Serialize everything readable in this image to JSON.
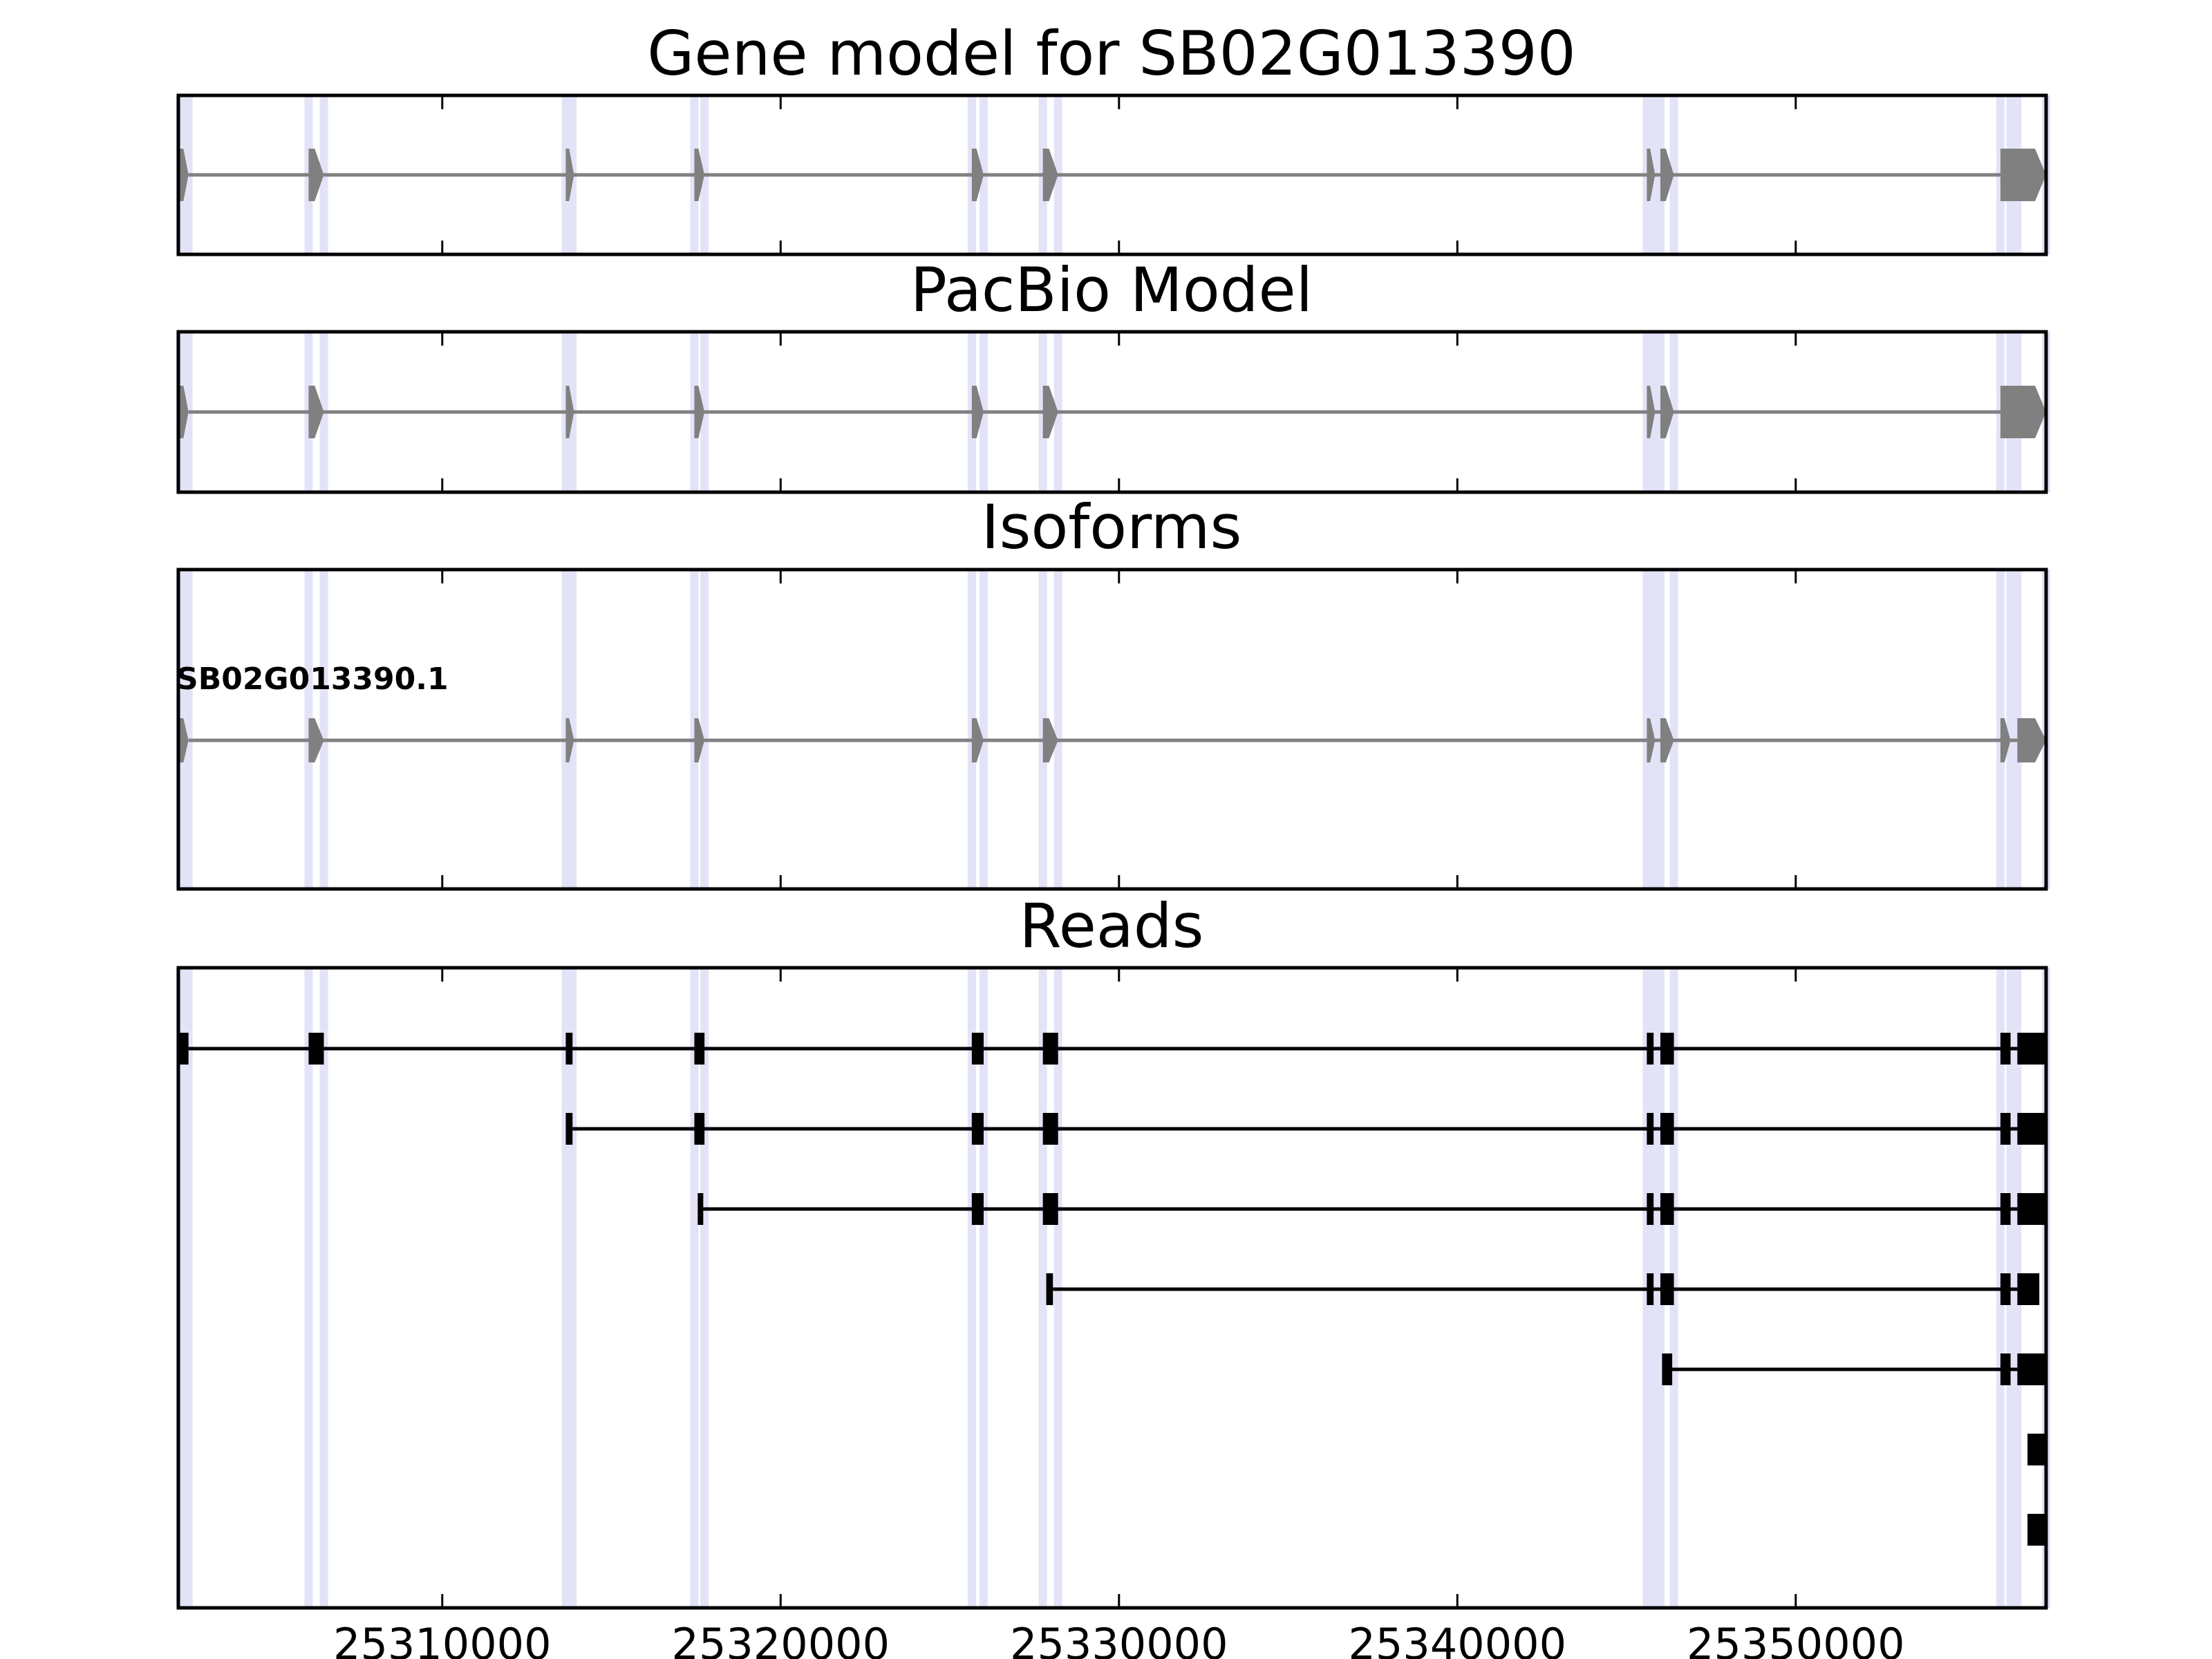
{
  "chart_data": {
    "type": "gene_model",
    "xlim": [
      25302200,
      25357400
    ],
    "x_ticks": [
      25310000,
      25320000,
      25330000,
      25340000,
      25350000
    ],
    "x_tick_labels": [
      "25310000",
      "25320000",
      "25330000",
      "25340000",
      "25350000"
    ],
    "exon_highlight_color": "#e3e3f8",
    "feature_color": "#808080",
    "read_color": "#000000",
    "splice_sites": [
      25302250,
      25302500,
      25306050,
      25306500,
      25313650,
      25313850,
      25317450,
      25317750,
      25325650,
      25326000,
      25327750,
      25328200,
      25345600,
      25345800,
      25346000,
      25346400,
      25356050,
      25356350,
      25356550,
      25357400
    ],
    "panels": [
      {
        "title": "Gene model for SB02G013390",
        "tracks": [
          {
            "exons": [
              [
                25302250,
                25302500
              ],
              [
                25306050,
                25306500
              ],
              [
                25313650,
                25313850
              ],
              [
                25317450,
                25317750
              ],
              [
                25325650,
                25326000
              ],
              [
                25327750,
                25328200
              ],
              [
                25345600,
                25345800
              ],
              [
                25346000,
                25346400
              ],
              [
                25356050,
                25357400
              ]
            ]
          }
        ]
      },
      {
        "title": "PacBio Model",
        "tracks": [
          {
            "exons": [
              [
                25302250,
                25302500
              ],
              [
                25306050,
                25306500
              ],
              [
                25313650,
                25313850
              ],
              [
                25317450,
                25317750
              ],
              [
                25325650,
                25326000
              ],
              [
                25327750,
                25328200
              ],
              [
                25345600,
                25345800
              ],
              [
                25346000,
                25346400
              ],
              [
                25356050,
                25357400
              ]
            ]
          }
        ]
      },
      {
        "title": "Isoforms",
        "tracks": [
          {
            "label": "SB02G013390.1",
            "exons": [
              [
                25302250,
                25302500
              ],
              [
                25306050,
                25306500
              ],
              [
                25313650,
                25313850
              ],
              [
                25317450,
                25317750
              ],
              [
                25325650,
                25326000
              ],
              [
                25327750,
                25328200
              ],
              [
                25345600,
                25345800
              ],
              [
                25346000,
                25346400
              ],
              [
                25356050,
                25356350
              ],
              [
                25356550,
                25357400
              ]
            ]
          }
        ]
      },
      {
        "title": "Reads",
        "tracks": [
          {
            "exons": [
              [
                25302250,
                25302500
              ],
              [
                25306050,
                25306500
              ],
              [
                25313650,
                25313850
              ],
              [
                25317450,
                25317750
              ],
              [
                25325650,
                25326000
              ],
              [
                25327750,
                25328200
              ],
              [
                25345600,
                25345800
              ],
              [
                25346000,
                25346400
              ],
              [
                25356050,
                25356350
              ],
              [
                25356550,
                25357400
              ]
            ]
          },
          {
            "exons": [
              [
                25313650,
                25313850
              ],
              [
                25317450,
                25317750
              ],
              [
                25325650,
                25326000
              ],
              [
                25327750,
                25328200
              ],
              [
                25345600,
                25345800
              ],
              [
                25346000,
                25346400
              ],
              [
                25356050,
                25356350
              ],
              [
                25356550,
                25357400
              ]
            ]
          },
          {
            "exons": [
              [
                25317550,
                25317650
              ],
              [
                25325650,
                25326000
              ],
              [
                25327750,
                25328200
              ],
              [
                25345600,
                25345800
              ],
              [
                25346000,
                25346400
              ],
              [
                25356050,
                25356350
              ],
              [
                25356550,
                25357400
              ]
            ]
          },
          {
            "exons": [
              [
                25327850,
                25328050
              ],
              [
                25345600,
                25345800
              ],
              [
                25346000,
                25346400
              ],
              [
                25356050,
                25356350
              ],
              [
                25356550,
                25357200
              ]
            ]
          },
          {
            "exons": [
              [
                25346050,
                25346350
              ],
              [
                25356050,
                25356350
              ],
              [
                25356550,
                25357400
              ]
            ]
          },
          {
            "exons": [
              [
                25356850,
                25357350
              ]
            ]
          },
          {
            "exons": [
              [
                25356850,
                25357350
              ]
            ]
          }
        ]
      }
    ]
  }
}
